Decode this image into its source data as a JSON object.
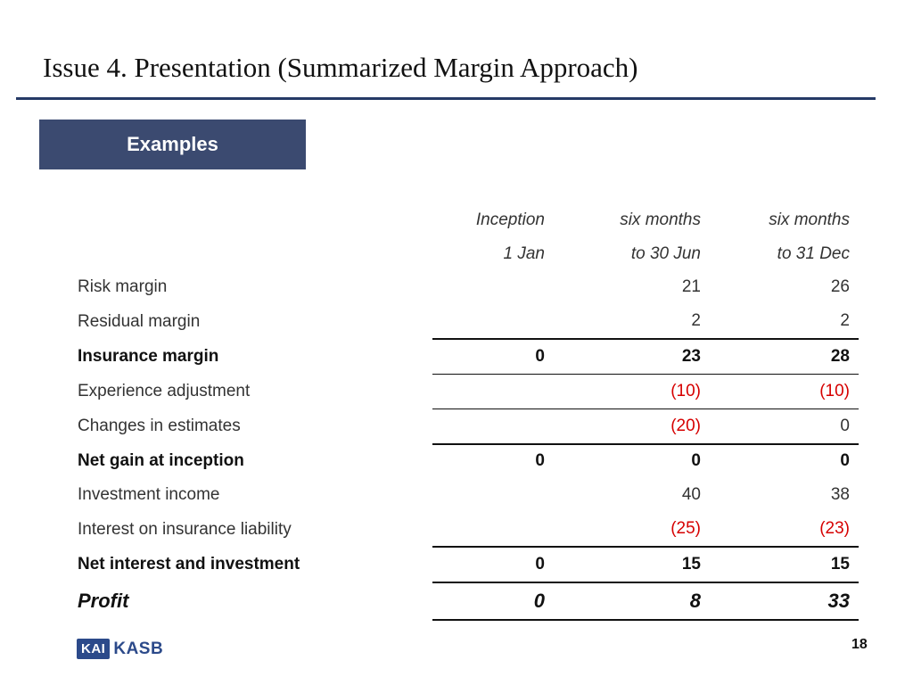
{
  "slide": {
    "title": "Issue 4. Presentation (Summarized Margin Approach)",
    "section_label": "Examples",
    "page_number": "18"
  },
  "logo": {
    "part1": "KAI",
    "part2": "KASB"
  },
  "table": {
    "header_row1": [
      "Inception",
      "six months",
      "six months"
    ],
    "header_row2": [
      "1 Jan",
      "to 30 Jun",
      "to 31 Dec"
    ],
    "rows": [
      {
        "label": "Risk margin",
        "values": [
          "",
          "21",
          "26"
        ]
      },
      {
        "label": "Residual margin",
        "values": [
          "",
          "2",
          "2"
        ]
      },
      {
        "label": "Insurance margin",
        "values": [
          "0",
          "23",
          "28"
        ]
      },
      {
        "label": "Experience adjustment",
        "values": [
          "",
          "(10)",
          "(10)"
        ]
      },
      {
        "label": "Changes in estimates",
        "values": [
          "",
          "(20)",
          "0"
        ]
      },
      {
        "label": "Net gain at inception",
        "values": [
          "0",
          "0",
          "0"
        ]
      },
      {
        "label": "Investment income",
        "values": [
          "",
          "40",
          "38"
        ]
      },
      {
        "label": "Interest on insurance liability",
        "values": [
          "",
          "(25)",
          "(23)"
        ]
      },
      {
        "label": "Net interest and investment",
        "values": [
          "0",
          "15",
          "15"
        ]
      },
      {
        "label": "Profit",
        "values": [
          "0",
          "8",
          "33"
        ]
      }
    ]
  },
  "colors": {
    "title_rule": "#253a66",
    "section_box": "#3b4a70",
    "negative": "#d60000"
  }
}
